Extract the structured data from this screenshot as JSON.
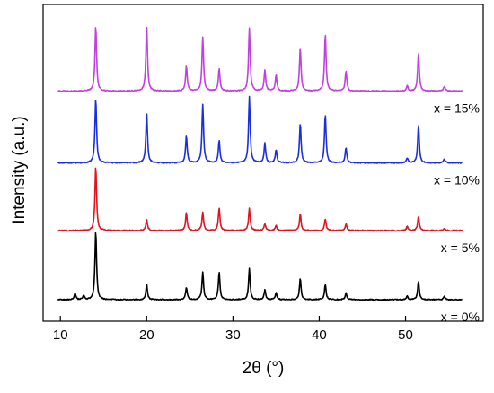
{
  "chart_data": {
    "type": "line",
    "xlabel": "2θ (°)",
    "ylabel": "Intensity (a.u.)",
    "xlim": [
      8,
      59
    ],
    "x_ticks": [
      10,
      20,
      30,
      40,
      50
    ],
    "y_ticks": "none",
    "grid": false,
    "legend": "none",
    "series": [
      {
        "name": "x = 0%",
        "color": "#000000",
        "baseline": 0.0,
        "peaks": [
          [
            11.7,
            0.09
          ],
          [
            12.7,
            0.06
          ],
          [
            14.1,
            1.0
          ],
          [
            20.0,
            0.22
          ],
          [
            24.6,
            0.18
          ],
          [
            26.5,
            0.4
          ],
          [
            28.4,
            0.4
          ],
          [
            31.9,
            0.45
          ],
          [
            33.7,
            0.14
          ],
          [
            35.0,
            0.1
          ],
          [
            37.8,
            0.31
          ],
          [
            40.7,
            0.22
          ],
          [
            43.1,
            0.1
          ],
          [
            50.2,
            0.05
          ],
          [
            51.5,
            0.27
          ],
          [
            54.5,
            0.05
          ]
        ]
      },
      {
        "name": "x = 5%",
        "color": "#e0141e",
        "baseline": 1.0,
        "peaks": [
          [
            14.1,
            0.93
          ],
          [
            20.0,
            0.16
          ],
          [
            24.6,
            0.26
          ],
          [
            26.5,
            0.27
          ],
          [
            28.4,
            0.33
          ],
          [
            31.9,
            0.32
          ],
          [
            33.7,
            0.1
          ],
          [
            35.0,
            0.08
          ],
          [
            37.8,
            0.24
          ],
          [
            40.7,
            0.17
          ],
          [
            43.1,
            0.1
          ],
          [
            50.2,
            0.06
          ],
          [
            51.5,
            0.21
          ],
          [
            54.5,
            0.03
          ]
        ]
      },
      {
        "name": "x = 10%",
        "color": "#1a2ee0",
        "baseline": 1.98,
        "peaks": [
          [
            14.1,
            0.94
          ],
          [
            20.0,
            0.73
          ],
          [
            24.6,
            0.39
          ],
          [
            26.5,
            0.85
          ],
          [
            28.4,
            0.33
          ],
          [
            31.9,
            0.96
          ],
          [
            33.7,
            0.28
          ],
          [
            35.0,
            0.19
          ],
          [
            37.8,
            0.57
          ],
          [
            40.7,
            0.7
          ],
          [
            43.1,
            0.22
          ],
          [
            50.2,
            0.07
          ],
          [
            51.5,
            0.55
          ],
          [
            54.5,
            0.06
          ]
        ]
      },
      {
        "name": "x = 15%",
        "color": "#c040e0",
        "baseline": 3.02,
        "peaks": [
          [
            14.1,
            0.95
          ],
          [
            20.0,
            0.95
          ],
          [
            24.6,
            0.36
          ],
          [
            26.5,
            0.78
          ],
          [
            28.4,
            0.32
          ],
          [
            31.9,
            0.91
          ],
          [
            33.7,
            0.3
          ],
          [
            35.0,
            0.23
          ],
          [
            37.8,
            0.62
          ],
          [
            40.7,
            0.82
          ],
          [
            43.1,
            0.29
          ],
          [
            50.2,
            0.07
          ],
          [
            51.5,
            0.55
          ],
          [
            54.5,
            0.07
          ]
        ]
      }
    ]
  }
}
